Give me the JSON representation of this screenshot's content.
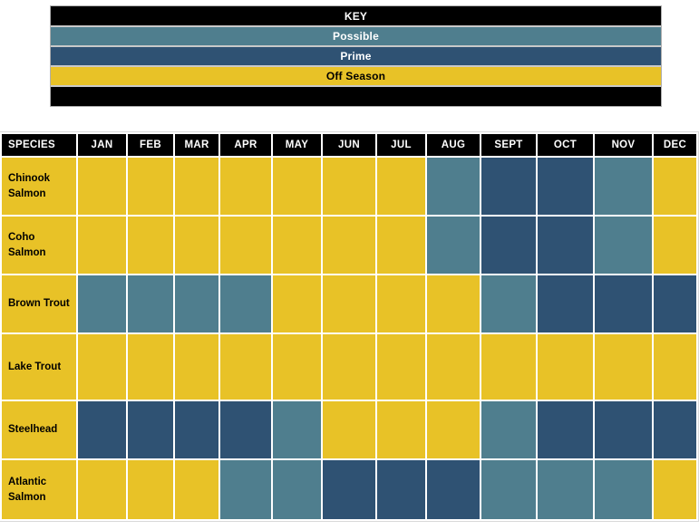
{
  "key": {
    "title": "KEY",
    "entries": [
      {
        "label": "Possible",
        "value": "possible",
        "text_color": "#ffffff"
      },
      {
        "label": "Prime",
        "value": "prime",
        "text_color": "#ffffff"
      },
      {
        "label": "Off Season",
        "value": "off",
        "text_color": "#000000"
      }
    ]
  },
  "season_colors": {
    "possible": "#4f7e8e",
    "prime": "#2f5273",
    "off": "#e8c227"
  },
  "colors": {
    "header_bg": "#000000",
    "header_text": "#ffffff",
    "key_title_bg": "#000000",
    "key_footer_bg": "#000000",
    "grid_gap": "#ffffff"
  },
  "chart_data": {
    "type": "heatmap",
    "title": "KEY",
    "columns": [
      "SPECIES",
      "JAN",
      "FEB",
      "MAR",
      "APR",
      "MAY",
      "JUN",
      "JUL",
      "AUG",
      "SEPT",
      "OCT",
      "NOV",
      "DEC"
    ],
    "legend": [
      {
        "label": "Possible",
        "value": "possible"
      },
      {
        "label": "Prime",
        "value": "prime"
      },
      {
        "label": "Off Season",
        "value": "off"
      }
    ],
    "legend_position": "top",
    "rows": [
      {
        "species": "Chinook Salmon",
        "months": [
          "off",
          "off",
          "off",
          "off",
          "off",
          "off",
          "off",
          "possible",
          "prime",
          "prime",
          "possible",
          "off"
        ]
      },
      {
        "species": "Coho Salmon",
        "months": [
          "off",
          "off",
          "off",
          "off",
          "off",
          "off",
          "off",
          "possible",
          "prime",
          "prime",
          "possible",
          "off"
        ]
      },
      {
        "species": "Brown Trout",
        "months": [
          "possible",
          "possible",
          "possible",
          "possible",
          "off",
          "off",
          "off",
          "off",
          "possible",
          "prime",
          "prime",
          "prime"
        ]
      },
      {
        "species": "Lake Trout",
        "months": [
          "off",
          "off",
          "off",
          "off",
          "off",
          "off",
          "off",
          "off",
          "off",
          "off",
          "off",
          "off"
        ]
      },
      {
        "species": "Steelhead",
        "months": [
          "prime",
          "prime",
          "prime",
          "prime",
          "possible",
          "off",
          "off",
          "off",
          "possible",
          "prime",
          "prime",
          "prime"
        ]
      },
      {
        "species": "Atlantic Salmon",
        "months": [
          "off",
          "off",
          "off",
          "possible",
          "possible",
          "prime",
          "prime",
          "prime",
          "possible",
          "possible",
          "possible",
          "off"
        ]
      }
    ]
  }
}
